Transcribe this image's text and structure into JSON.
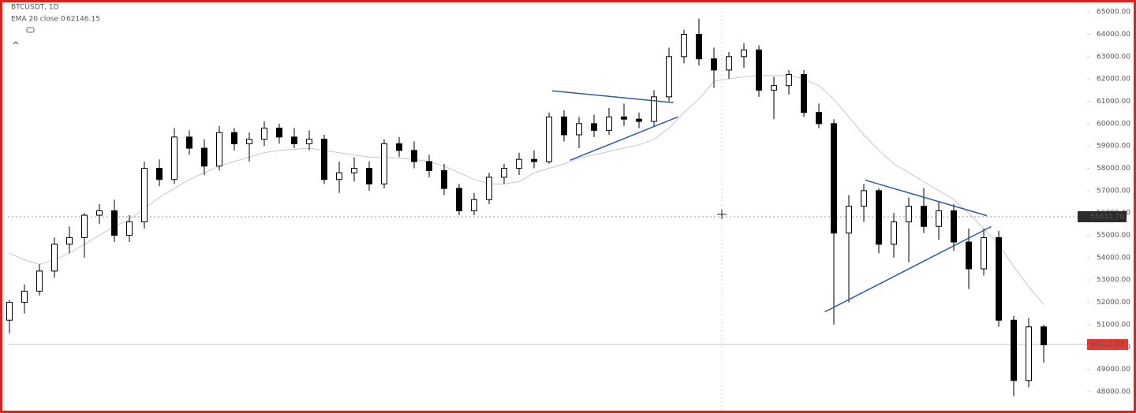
{
  "chart_data": {
    "type": "candlestick",
    "legend_lines": [
      "BTCUSDT, 1D",
      "EMA 20 close 0",
      "62146.15"
    ],
    "up_color": "#ffffff",
    "down_color": "#000000",
    "ylim": [
      47080,
      65500
    ],
    "yticks": [
      {
        "value": 48000,
        "label": "48000.00"
      },
      {
        "value": 49000,
        "label": "49000.00"
      },
      {
        "value": 50000,
        "label": "50000.00"
      },
      {
        "value": 51000,
        "label": "51000.00"
      },
      {
        "value": 52000,
        "label": "52000.00"
      },
      {
        "value": 53000,
        "label": "53000.00"
      },
      {
        "value": 54000,
        "label": "54000.00"
      },
      {
        "value": 55000,
        "label": "55000.00"
      },
      {
        "value": 56000,
        "label": "56000.00"
      },
      {
        "value": 57000,
        "label": "57000.00"
      },
      {
        "value": 58000,
        "label": "58000.00"
      },
      {
        "value": 59000,
        "label": "59000.00"
      },
      {
        "value": 60000,
        "label": "60000.00"
      },
      {
        "value": 61000,
        "label": "61000.00"
      },
      {
        "value": 62000,
        "label": "62000.00"
      },
      {
        "value": 63000,
        "label": "63000.00"
      },
      {
        "value": 64000,
        "label": "64000.00"
      },
      {
        "value": 65000,
        "label": "65000.00"
      }
    ],
    "candles": [
      [
        51200,
        52100,
        50600,
        52000
      ],
      [
        52000,
        52800,
        51500,
        52500
      ],
      [
        52500,
        53700,
        52300,
        53400
      ],
      [
        53400,
        54900,
        53100,
        54600
      ],
      [
        54600,
        55400,
        54200,
        54900
      ],
      [
        54900,
        56000,
        54000,
        55900
      ],
      [
        55900,
        56400,
        55500,
        56100
      ],
      [
        56100,
        56600,
        54700,
        55000
      ],
      [
        55000,
        55900,
        54700,
        55600
      ],
      [
        55600,
        58300,
        55300,
        58000
      ],
      [
        58000,
        58400,
        57200,
        57500
      ],
      [
        57500,
        59800,
        57300,
        59400
      ],
      [
        59400,
        59700,
        58600,
        58900
      ],
      [
        58900,
        59300,
        57700,
        58100
      ],
      [
        58100,
        59900,
        57900,
        59600
      ],
      [
        59600,
        59800,
        58800,
        59100
      ],
      [
        59100,
        59600,
        58300,
        59300
      ],
      [
        59300,
        60100,
        59000,
        59800
      ],
      [
        59800,
        60000,
        59100,
        59400
      ],
      [
        59400,
        59800,
        58900,
        59100
      ],
      [
        59100,
        59700,
        58800,
        59300
      ],
      [
        59300,
        59500,
        57300,
        57500
      ],
      [
        57500,
        58300,
        56900,
        57800
      ],
      [
        57800,
        58500,
        57400,
        58000
      ],
      [
        58000,
        58300,
        57000,
        57300
      ],
      [
        57300,
        59300,
        57100,
        59100
      ],
      [
        59100,
        59400,
        58500,
        58800
      ],
      [
        58800,
        59200,
        58000,
        58300
      ],
      [
        58300,
        58600,
        57600,
        57900
      ],
      [
        57900,
        58200,
        56800,
        57100
      ],
      [
        57100,
        57300,
        55900,
        56100
      ],
      [
        56100,
        56900,
        55900,
        56600
      ],
      [
        56600,
        57800,
        56400,
        57600
      ],
      [
        57600,
        58200,
        57300,
        58000
      ],
      [
        58000,
        58700,
        57700,
        58400
      ],
      [
        58400,
        58800,
        58000,
        58300
      ],
      [
        58300,
        60500,
        58200,
        60300
      ],
      [
        60300,
        60600,
        59200,
        59500
      ],
      [
        59500,
        60300,
        58900,
        60000
      ],
      [
        60000,
        60400,
        59400,
        59700
      ],
      [
        59700,
        60700,
        59500,
        60300
      ],
      [
        60300,
        60900,
        59900,
        60200
      ],
      [
        60200,
        60500,
        59800,
        60100
      ],
      [
        60100,
        61500,
        59900,
        61200
      ],
      [
        61200,
        63400,
        61000,
        63000
      ],
      [
        63000,
        64200,
        62700,
        64000
      ],
      [
        64000,
        64700,
        62600,
        62900
      ],
      [
        62900,
        63400,
        61600,
        62400
      ],
      [
        62400,
        63200,
        62000,
        63000
      ],
      [
        63000,
        63600,
        62500,
        63300
      ],
      [
        63300,
        63500,
        61200,
        61500
      ],
      [
        61500,
        62100,
        60200,
        61700
      ],
      [
        61700,
        62400,
        61300,
        62200
      ],
      [
        62200,
        62400,
        60300,
        60500
      ],
      [
        60500,
        60900,
        59800,
        60000
      ],
      [
        60000,
        60200,
        51000,
        55100
      ],
      [
        55100,
        56800,
        52000,
        56300
      ],
      [
        56300,
        57300,
        55600,
        57000
      ],
      [
        57000,
        57100,
        54200,
        54600
      ],
      [
        54600,
        56000,
        54000,
        55600
      ],
      [
        55600,
        56700,
        53800,
        56300
      ],
      [
        56300,
        57100,
        55100,
        55400
      ],
      [
        55400,
        56500,
        54800,
        56100
      ],
      [
        56100,
        56400,
        54300,
        54700
      ],
      [
        54700,
        55300,
        52600,
        53500
      ],
      [
        53500,
        55300,
        53200,
        54900
      ],
      [
        54900,
        55200,
        50900,
        51200
      ],
      [
        51200,
        51400,
        47800,
        48500
      ],
      [
        48500,
        51300,
        48200,
        50900
      ],
      [
        50900,
        51000,
        49300,
        50100
      ]
    ],
    "ema": {
      "color": "#c8c8c8",
      "values": [
        54200,
        53900,
        53700,
        53900,
        54200,
        54600,
        55000,
        55400,
        55700,
        56200,
        56700,
        57100,
        57500,
        57800,
        58100,
        58300,
        58500,
        58700,
        58800,
        58850,
        58900,
        58800,
        58700,
        58600,
        58500,
        58500,
        58450,
        58400,
        58300,
        58100,
        57800,
        57500,
        57300,
        57300,
        57400,
        57800,
        58000,
        58200,
        58450,
        58600,
        58750,
        58900,
        59050,
        59300,
        59800,
        60500,
        61100,
        61900,
        62000,
        62100,
        62150,
        62150,
        62150,
        62000,
        61700,
        61100,
        60300,
        59500,
        58800,
        58200,
        57800,
        57400,
        57000,
        56600,
        56000,
        55300,
        54600,
        53600,
        52700,
        51900
      ]
    },
    "trendline_color": "#2a5caa",
    "trendlines": [
      {
        "x": [
          36.2,
          44.3
        ],
        "y": [
          61470,
          60940
        ]
      },
      {
        "x": [
          37.4,
          44.6
        ],
        "y": [
          58360,
          60300
        ]
      },
      {
        "x": [
          57.1,
          65.2
        ],
        "y": [
          57470,
          55880
        ]
      },
      {
        "x": [
          54.4,
          65.5
        ],
        "y": [
          51570,
          55390
        ]
      }
    ],
    "crosshair": {
      "value": 55831.7,
      "label": "55831.70"
    },
    "last_price": {
      "value": 50112.83,
      "label": "50112.83",
      "color": "#e53935"
    }
  }
}
